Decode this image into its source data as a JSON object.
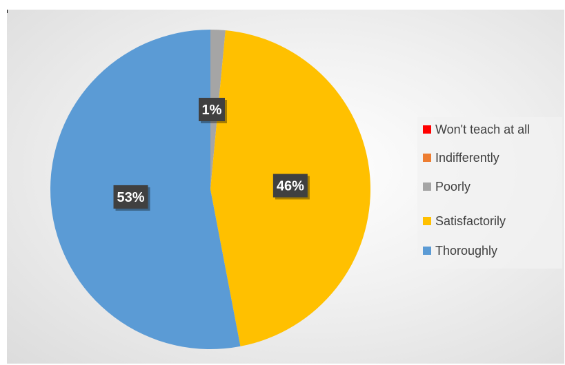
{
  "chart_data": {
    "type": "pie",
    "title": "",
    "categories": [
      "Won't teach at all",
      "Indifferently",
      "Poorly",
      "Satisfactorily",
      "Thoroughly"
    ],
    "values": [
      0,
      0,
      1,
      46,
      53
    ],
    "slice_values": [
      0,
      0,
      1.5,
      45.5,
      53
    ],
    "colors": [
      "#ff0000",
      "#ed7d31",
      "#a5a5a5",
      "#ffc000",
      "#5b9bd5"
    ],
    "data_labels": [
      "",
      "",
      "1%",
      "46%",
      "53%"
    ],
    "legend_position": "right"
  },
  "legend": {
    "items": [
      {
        "label": "Won't teach at all",
        "color": "#ff0000"
      },
      {
        "label": "Indifferently",
        "color": "#ed7d31"
      },
      {
        "label": "Poorly",
        "color": "#a5a5a5"
      },
      {
        "label": "Satisfactorily",
        "color": "#ffc000"
      },
      {
        "label": "Thoroughly",
        "color": "#5b9bd5"
      }
    ]
  }
}
